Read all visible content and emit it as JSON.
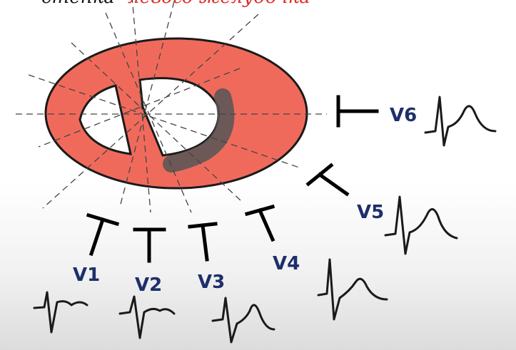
{
  "title": {
    "part1": "стенка",
    "part2": "левого желудочка"
  },
  "colors": {
    "myocardium": "#f06a5c",
    "myocardium_outline": "#1a1a1a",
    "lead_label": "#1d2f6b",
    "infarct_zone": "#555555",
    "title_accent": "#e12a25"
  },
  "leads": [
    {
      "id": "v1",
      "label": "V1"
    },
    {
      "id": "v2",
      "label": "V2"
    },
    {
      "id": "v3",
      "label": "V3"
    },
    {
      "id": "v4",
      "label": "V4"
    },
    {
      "id": "v5",
      "label": "V5"
    },
    {
      "id": "v6",
      "label": "V6"
    }
  ]
}
